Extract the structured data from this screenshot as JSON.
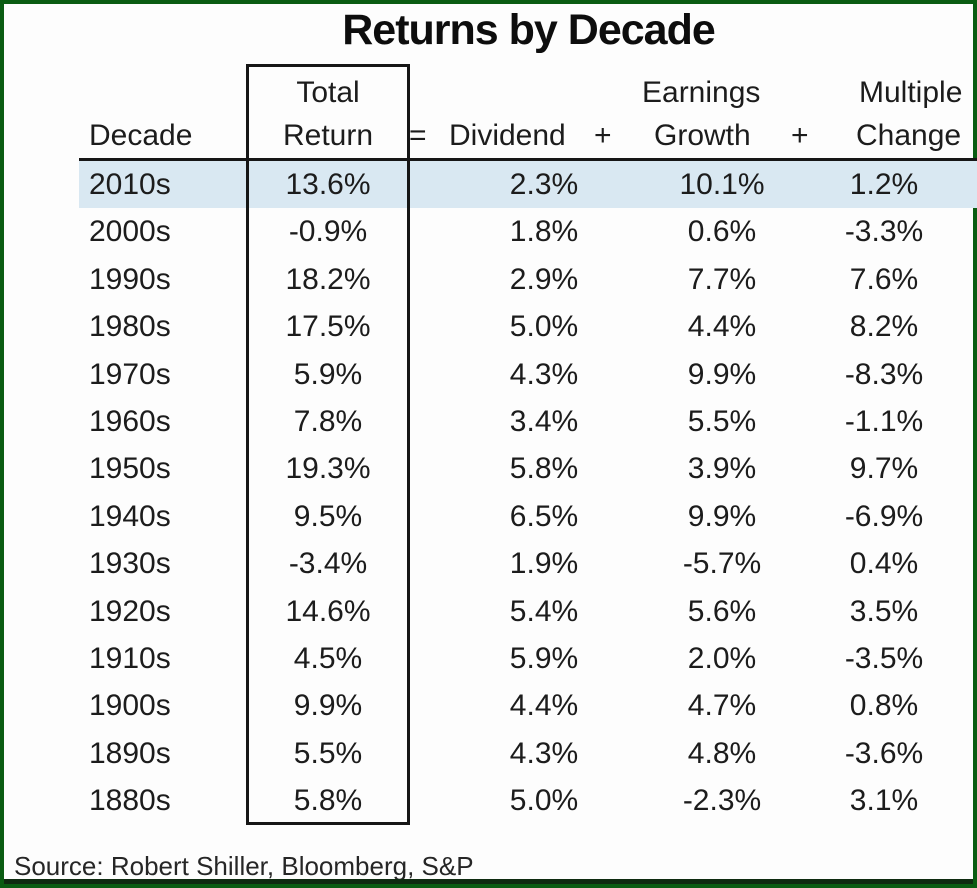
{
  "page": {
    "title": "Returns by Decade",
    "source": "Source: Robert Shiller, Bloomberg, S&P"
  },
  "table": {
    "group_headers": {
      "total_line1": "Total",
      "earnings_line1": "Earnings",
      "multiple_line1": "Multiple"
    },
    "headers": {
      "decade": "Decade",
      "total_line2": "Return",
      "equals": "=",
      "dividend": "Dividend",
      "plus1": "+",
      "growth": "Growth",
      "plus2": "+",
      "change": "Change"
    },
    "rows": [
      {
        "decade": "2010s",
        "total": "13.6%",
        "dividend": "2.3%",
        "growth": "10.1%",
        "change": "1.2%",
        "highlighted": true
      },
      {
        "decade": "2000s",
        "total": "-0.9%",
        "dividend": "1.8%",
        "growth": "0.6%",
        "change": "-3.3%",
        "highlighted": false
      },
      {
        "decade": "1990s",
        "total": "18.2%",
        "dividend": "2.9%",
        "growth": "7.7%",
        "change": "7.6%",
        "highlighted": false
      },
      {
        "decade": "1980s",
        "total": "17.5%",
        "dividend": "5.0%",
        "growth": "4.4%",
        "change": "8.2%",
        "highlighted": false
      },
      {
        "decade": "1970s",
        "total": "5.9%",
        "dividend": "4.3%",
        "growth": "9.9%",
        "change": "-8.3%",
        "highlighted": false
      },
      {
        "decade": "1960s",
        "total": "7.8%",
        "dividend": "3.4%",
        "growth": "5.5%",
        "change": "-1.1%",
        "highlighted": false
      },
      {
        "decade": "1950s",
        "total": "19.3%",
        "dividend": "5.8%",
        "growth": "3.9%",
        "change": "9.7%",
        "highlighted": false
      },
      {
        "decade": "1940s",
        "total": "9.5%",
        "dividend": "6.5%",
        "growth": "9.9%",
        "change": "-6.9%",
        "highlighted": false
      },
      {
        "decade": "1930s",
        "total": "-3.4%",
        "dividend": "1.9%",
        "growth": "-5.7%",
        "change": "0.4%",
        "highlighted": false
      },
      {
        "decade": "1920s",
        "total": "14.6%",
        "dividend": "5.4%",
        "growth": "5.6%",
        "change": "3.5%",
        "highlighted": false
      },
      {
        "decade": "1910s",
        "total": "4.5%",
        "dividend": "5.9%",
        "growth": "2.0%",
        "change": "-3.5%",
        "highlighted": false
      },
      {
        "decade": "1900s",
        "total": "9.9%",
        "dividend": "4.4%",
        "growth": "4.7%",
        "change": "0.8%",
        "highlighted": false
      },
      {
        "decade": "1890s",
        "total": "5.5%",
        "dividend": "4.3%",
        "growth": "4.8%",
        "change": "-3.6%",
        "highlighted": false
      },
      {
        "decade": "1880s",
        "total": "5.8%",
        "dividend": "5.0%",
        "growth": "-2.3%",
        "change": "3.1%",
        "highlighted": false
      }
    ]
  },
  "colors": {
    "border_green": "#0a5c12",
    "highlight_blue": "#d9e8f2",
    "header_rule": "#161616",
    "text": "#1c1c1c",
    "background": "#fdfdfd",
    "bottom_band": "#0e2b10"
  },
  "chart_data": {
    "type": "table",
    "title": "Returns by Decade",
    "equation": "Total Return = Dividend + Earnings Growth + Multiple Change",
    "columns": [
      "Decade",
      "Total Return",
      "Dividend",
      "Earnings Growth",
      "Multiple Change"
    ],
    "rows": [
      [
        "2010s",
        13.6,
        2.3,
        10.1,
        1.2
      ],
      [
        "2000s",
        -0.9,
        1.8,
        0.6,
        -3.3
      ],
      [
        "1990s",
        18.2,
        2.9,
        7.7,
        7.6
      ],
      [
        "1980s",
        17.5,
        5.0,
        4.4,
        8.2
      ],
      [
        "1970s",
        5.9,
        4.3,
        9.9,
        -8.3
      ],
      [
        "1960s",
        7.8,
        3.4,
        5.5,
        -1.1
      ],
      [
        "1950s",
        19.3,
        5.8,
        3.9,
        9.7
      ],
      [
        "1940s",
        9.5,
        6.5,
        9.9,
        -6.9
      ],
      [
        "1930s",
        -3.4,
        1.9,
        -5.7,
        0.4
      ],
      [
        "1920s",
        14.6,
        5.4,
        5.6,
        3.5
      ],
      [
        "1910s",
        4.5,
        5.9,
        2.0,
        -3.5
      ],
      [
        "1900s",
        9.9,
        4.4,
        4.7,
        0.8
      ],
      [
        "1890s",
        5.5,
        4.3,
        4.8,
        -3.6
      ],
      [
        "1880s",
        5.8,
        5.0,
        -2.3,
        3.1
      ]
    ],
    "units": "percent",
    "highlighted_row": "2010s",
    "source": "Robert Shiller, Bloomberg, S&P"
  }
}
